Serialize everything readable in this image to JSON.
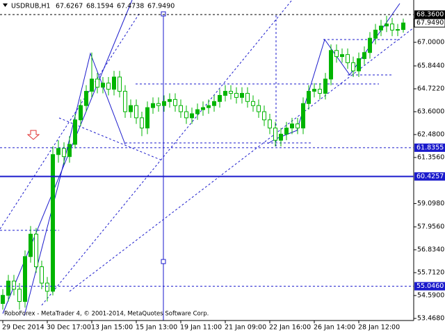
{
  "chart_data": {
    "type": "candlestick",
    "title": "USDRUB,H1",
    "header_values": [
      "67.6267",
      "68.1594",
      "67.4738",
      "67.9490"
    ],
    "watermark": "RoboForex - MetaTrader 4, © 2001-2014, MetaQuotes Software Corp.",
    "categories": [
      "29 Dec 2014",
      null,
      null,
      null,
      null,
      null,
      null,
      null,
      "30 Dec 17:00",
      null,
      null,
      null,
      null,
      null,
      null,
      null,
      "13 Jan 15:00",
      null,
      null,
      null,
      null,
      null,
      null,
      null,
      "15 Jan 13:00",
      null,
      null,
      null,
      null,
      null,
      null,
      null,
      "19 Jan 11:00",
      null,
      null,
      null,
      null,
      null,
      null,
      null,
      "21 Jan 09:00",
      null,
      null,
      null,
      null,
      null,
      null,
      null,
      "22 Jan 16:00",
      null,
      null,
      null,
      null,
      null,
      null,
      null,
      "26 Jan 14:00",
      null,
      null,
      null,
      null,
      null,
      null,
      null,
      "28 Jan 12:00",
      null,
      null,
      null,
      null,
      null,
      null,
      null,
      null
    ],
    "open": [
      54.2,
      54.6,
      55.3,
      54.9,
      54.3,
      56.5,
      57.6,
      56.0,
      55.2,
      54.8,
      61.5,
      61.8,
      61.4,
      62.0,
      63.2,
      63.9,
      64.6,
      65.2,
      64.8,
      65.0,
      64.7,
      65.3,
      64.6,
      63.6,
      63.9,
      63.3,
      62.8,
      63.8,
      64.0,
      63.9,
      64.1,
      64.2,
      63.9,
      63.6,
      63.3,
      63.5,
      63.7,
      63.8,
      63.9,
      64.1,
      64.4,
      64.6,
      64.5,
      64.3,
      64.5,
      64.1,
      63.9,
      63.6,
      63.2,
      62.8,
      62.2,
      62.5,
      62.8,
      63.0,
      62.8,
      64.0,
      64.6,
      64.7,
      64.5,
      65.2,
      66.6,
      66.3,
      66.4,
      66.0,
      65.6,
      66.2,
      66.5,
      67.2,
      67.6,
      67.8,
      67.9,
      67.6,
      67.6267
    ],
    "high": [
      54.9,
      55.6,
      55.6,
      55.2,
      56.8,
      58.0,
      57.9,
      56.3,
      55.5,
      61.9,
      62.2,
      62.1,
      62.4,
      63.5,
      64.2,
      64.9,
      66.5,
      65.5,
      65.3,
      65.3,
      65.6,
      65.6,
      64.9,
      64.2,
      64.2,
      63.6,
      64.1,
      64.3,
      64.3,
      64.4,
      64.5,
      64.5,
      64.2,
      63.9,
      63.8,
      64.0,
      64.1,
      64.2,
      64.4,
      64.7,
      64.9,
      64.9,
      64.8,
      64.8,
      64.8,
      64.4,
      64.2,
      63.9,
      63.5,
      63.1,
      62.8,
      63.1,
      63.3,
      63.3,
      64.3,
      64.9,
      65.0,
      65.0,
      65.5,
      66.9,
      66.9,
      66.7,
      66.7,
      66.3,
      66.5,
      66.8,
      67.5,
      67.9,
      68.1,
      68.3,
      68.2,
      67.9,
      68.1594
    ],
    "low": [
      53.9,
      54.3,
      54.6,
      53.9,
      54.0,
      56.2,
      55.7,
      54.9,
      54.3,
      54.6,
      61.1,
      61.0,
      61.1,
      61.8,
      62.9,
      63.6,
      64.3,
      64.5,
      64.5,
      64.4,
      64.4,
      64.3,
      63.3,
      63.3,
      63.0,
      62.4,
      62.5,
      63.5,
      63.6,
      63.6,
      63.8,
      63.6,
      63.3,
      63.0,
      63.0,
      63.2,
      63.4,
      63.5,
      63.6,
      63.8,
      64.1,
      64.2,
      64.0,
      64.0,
      63.8,
      63.6,
      63.3,
      62.9,
      62.5,
      61.9,
      61.9,
      62.2,
      62.5,
      62.5,
      62.5,
      63.7,
      64.3,
      64.2,
      64.2,
      64.9,
      66.0,
      66.0,
      65.7,
      65.3,
      65.3,
      65.9,
      66.2,
      66.9,
      67.3,
      67.5,
      67.3,
      67.3,
      67.4738
    ],
    "close": [
      54.6,
      55.3,
      54.9,
      54.3,
      56.5,
      57.6,
      56.0,
      55.2,
      54.8,
      61.5,
      61.8,
      61.4,
      62.0,
      63.2,
      63.9,
      64.6,
      65.2,
      64.8,
      65.0,
      64.7,
      65.3,
      64.6,
      63.6,
      63.9,
      63.3,
      62.8,
      63.8,
      64.0,
      63.9,
      64.1,
      64.2,
      63.9,
      63.6,
      63.3,
      63.5,
      63.7,
      63.8,
      63.9,
      64.1,
      64.4,
      64.6,
      64.5,
      64.3,
      64.5,
      64.1,
      63.9,
      63.6,
      63.2,
      62.8,
      62.2,
      62.5,
      62.8,
      63.0,
      62.8,
      64.0,
      64.6,
      64.7,
      64.5,
      65.2,
      66.6,
      66.3,
      66.4,
      66.0,
      65.6,
      66.2,
      66.5,
      67.2,
      67.6,
      67.8,
      67.9,
      67.6,
      67.6267,
      67.949
    ],
    "up_color": "#00b400",
    "down_color": "#ffffff",
    "wick_color": "#00b400",
    "ylim": [
      53.366,
      69.074
    ],
    "yticks": [
      {
        "value": 67.0,
        "label": "67.0000"
      },
      {
        "value": 65.844,
        "label": "65.8440"
      },
      {
        "value": 64.722,
        "label": "64.7220"
      },
      {
        "value": 63.6,
        "label": "63.6000"
      },
      {
        "value": 62.48,
        "label": "62.4800"
      },
      {
        "value": 61.356,
        "label": "61.3560"
      },
      {
        "value": 59.098,
        "label": "59.0980"
      },
      {
        "value": 57.956,
        "label": "57.9560"
      },
      {
        "value": 56.834,
        "label": "56.8340"
      },
      {
        "value": 55.712,
        "label": "55.7120"
      },
      {
        "value": 54.59,
        "label": "54.5900"
      },
      {
        "value": 53.468,
        "label": "53.4680"
      }
    ],
    "levels": [
      {
        "value": 68.36,
        "label": "68.3600",
        "color": "#000000",
        "style": "dashed"
      },
      {
        "value": 61.8355,
        "label": "61.8355",
        "color": "#1a1acc",
        "style": "dashed"
      },
      {
        "value": 60.4257,
        "label": "60.4257",
        "color": "#1a1acc",
        "style": "solid"
      },
      {
        "value": 55.046,
        "label": "55.0460",
        "color": "#1a1acc",
        "style": "dashed"
      }
    ],
    "current_price": {
      "value": 67.949,
      "label": "67.9490"
    },
    "grid": false
  }
}
